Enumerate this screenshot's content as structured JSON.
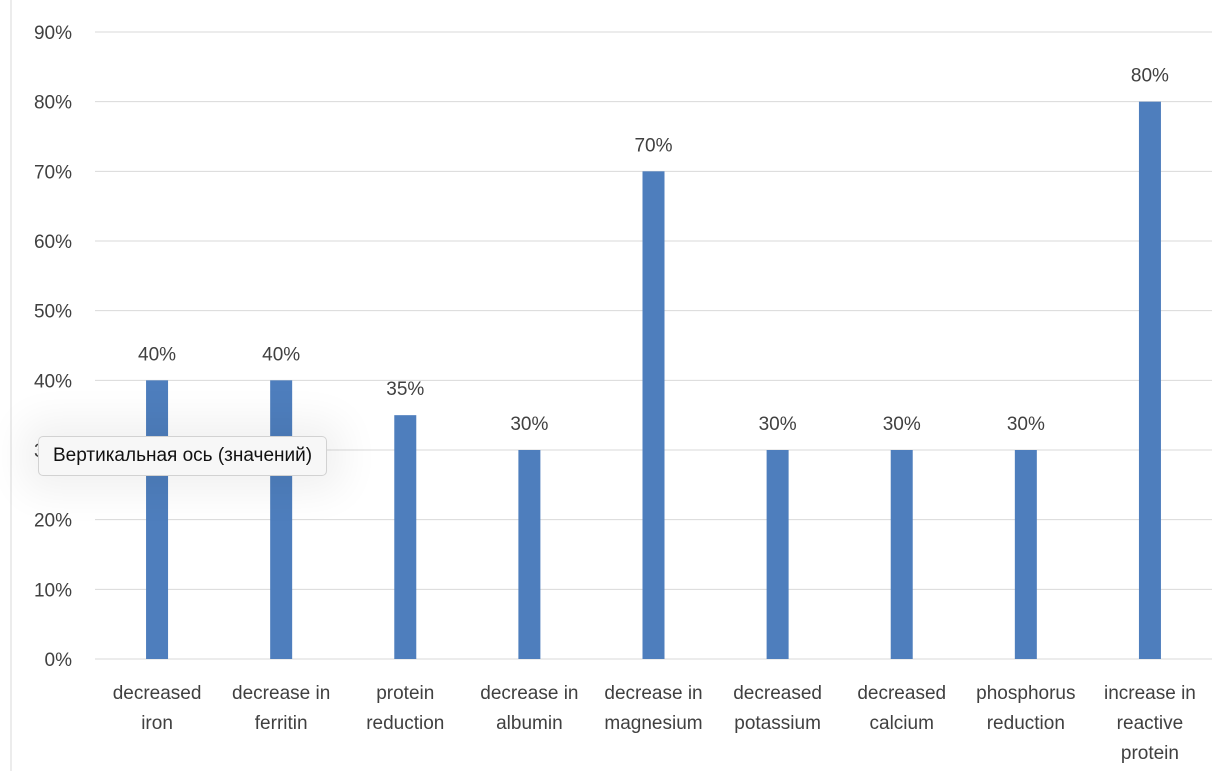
{
  "chart_data": {
    "type": "bar",
    "title": "",
    "xlabel": "",
    "ylabel": "",
    "categories": [
      [
        "decreased",
        "iron"
      ],
      [
        "decrease in",
        "ferritin"
      ],
      [
        "protein",
        "reduction"
      ],
      [
        "decrease in",
        "albumin"
      ],
      [
        "decrease in",
        "magnesium"
      ],
      [
        "decreased",
        "potassium"
      ],
      [
        "decreased",
        "calcium"
      ],
      [
        "phosphorus",
        "reduction"
      ],
      [
        "increase in",
        "reactive",
        "protein"
      ]
    ],
    "values": [
      40,
      40,
      35,
      30,
      70,
      30,
      30,
      30,
      80
    ],
    "data_labels": [
      "40%",
      "40%",
      "35%",
      "30%",
      "70%",
      "30%",
      "30%",
      "30%",
      "80%"
    ],
    "ylim": [
      0,
      90
    ],
    "y_ticks": [
      0,
      10,
      20,
      30,
      40,
      50,
      60,
      70,
      80,
      90
    ],
    "y_tick_labels": [
      "0%",
      "10%",
      "20%",
      "30%",
      "40%",
      "50%",
      "60%",
      "70%",
      "80%",
      "90%"
    ],
    "grid": true,
    "legend": "none",
    "bar_color": "#4e7ebd",
    "grid_color": "#d9d9d9",
    "text_color": "#404040"
  },
  "tooltip": {
    "text": "Вертикальная ось (значений)"
  }
}
